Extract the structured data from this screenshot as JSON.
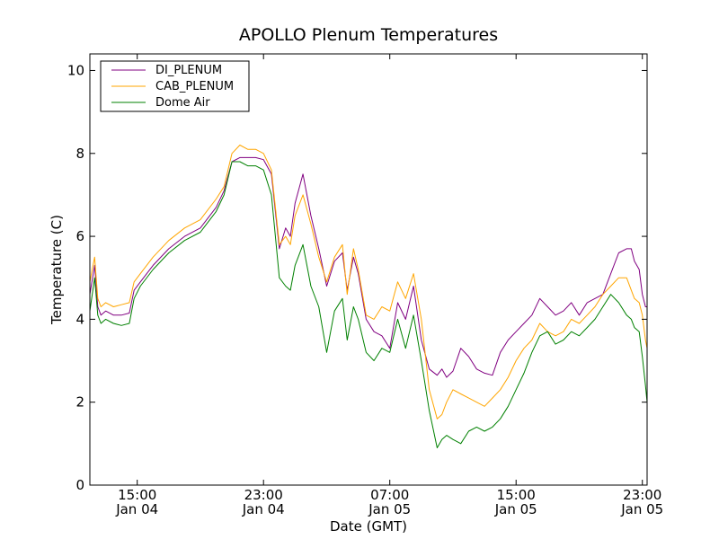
{
  "chart_data": {
    "type": "line",
    "title": "APOLLO Plenum Temperatures",
    "xlabel": "Date (GMT)",
    "ylabel": "Temperature (C)",
    "ylim": [
      0,
      10.4
    ],
    "xlim": [
      12.0,
      47.3
    ],
    "x_unit": "hours since 2014-01-04 00:00 GMT",
    "yticks": [
      0,
      2,
      4,
      6,
      8,
      10
    ],
    "xticks": [
      {
        "x": 15,
        "time": "15:00",
        "date": "Jan 04"
      },
      {
        "x": 23,
        "time": "23:00",
        "date": "Jan 04"
      },
      {
        "x": 31,
        "time": "07:00",
        "date": "Jan 05"
      },
      {
        "x": 39,
        "time": "15:00",
        "date": "Jan 05"
      },
      {
        "x": 47,
        "time": "23:00",
        "date": "Jan 05"
      }
    ],
    "grid": false,
    "legend_position": "top-left",
    "series": [
      {
        "name": "DI_PLENUM",
        "color": "#800080",
        "x": [
          12.0,
          12.3,
          12.5,
          12.7,
          13.0,
          13.5,
          14.0,
          14.5,
          14.8,
          15.2,
          16.0,
          17.0,
          18.0,
          19.0,
          20.0,
          20.5,
          21.0,
          21.5,
          22.0,
          22.5,
          23.0,
          23.5,
          24.0,
          24.4,
          24.7,
          25.0,
          25.5,
          26.0,
          26.5,
          27.0,
          27.5,
          28.0,
          28.3,
          28.7,
          29.0,
          29.5,
          30.0,
          30.5,
          31.0,
          31.5,
          32.0,
          32.5,
          33.0,
          33.5,
          34.0,
          34.3,
          34.6,
          35.0,
          35.5,
          36.0,
          36.5,
          37.0,
          37.5,
          38.0,
          38.5,
          39.0,
          39.5,
          40.0,
          40.5,
          41.0,
          41.5,
          42.0,
          42.5,
          43.0,
          43.5,
          44.0,
          44.5,
          45.0,
          45.5,
          46.0,
          46.3,
          46.5,
          46.8,
          47.0,
          47.2,
          47.3
        ],
        "values": [
          4.6,
          5.3,
          4.3,
          4.1,
          4.2,
          4.1,
          4.1,
          4.15,
          4.7,
          4.9,
          5.3,
          5.7,
          6.0,
          6.2,
          6.7,
          7.1,
          7.8,
          7.9,
          7.9,
          7.9,
          7.85,
          7.5,
          5.7,
          6.2,
          6.0,
          6.8,
          7.5,
          6.5,
          5.7,
          4.8,
          5.4,
          5.6,
          4.7,
          5.5,
          5.1,
          4.0,
          3.7,
          3.6,
          3.3,
          4.4,
          4.0,
          4.8,
          3.5,
          2.8,
          2.65,
          2.8,
          2.6,
          2.75,
          3.3,
          3.1,
          2.8,
          2.7,
          2.65,
          3.2,
          3.5,
          3.7,
          3.9,
          4.1,
          4.5,
          4.3,
          4.1,
          4.2,
          4.4,
          4.1,
          4.4,
          4.5,
          4.6,
          5.1,
          5.6,
          5.7,
          5.7,
          5.4,
          5.2,
          4.6,
          4.3,
          4.3
        ]
      },
      {
        "name": "CAB_PLENUM",
        "color": "#FFA500",
        "x": [
          12.0,
          12.3,
          12.5,
          12.7,
          13.0,
          13.5,
          14.0,
          14.5,
          14.8,
          15.2,
          16.0,
          17.0,
          18.0,
          19.0,
          20.0,
          20.5,
          21.0,
          21.5,
          22.0,
          22.5,
          23.0,
          23.5,
          24.0,
          24.4,
          24.7,
          25.0,
          25.5,
          26.0,
          26.5,
          27.0,
          27.5,
          28.0,
          28.3,
          28.7,
          29.0,
          29.5,
          30.0,
          30.5,
          31.0,
          31.5,
          32.0,
          32.5,
          33.0,
          33.5,
          34.0,
          34.3,
          34.6,
          35.0,
          35.5,
          36.0,
          36.5,
          37.0,
          37.5,
          38.0,
          38.5,
          39.0,
          39.5,
          40.0,
          40.5,
          41.0,
          41.5,
          42.0,
          42.5,
          43.0,
          43.5,
          44.0,
          44.5,
          45.0,
          45.5,
          46.0,
          46.3,
          46.5,
          46.8,
          47.0,
          47.2,
          47.3
        ],
        "values": [
          4.9,
          5.5,
          4.5,
          4.3,
          4.4,
          4.3,
          4.35,
          4.4,
          4.9,
          5.1,
          5.5,
          5.9,
          6.2,
          6.4,
          6.9,
          7.2,
          8.0,
          8.2,
          8.1,
          8.1,
          8.0,
          7.6,
          5.8,
          6.0,
          5.8,
          6.5,
          7.0,
          6.3,
          5.5,
          4.9,
          5.5,
          5.8,
          4.6,
          5.7,
          5.2,
          4.1,
          4.0,
          4.3,
          4.2,
          4.9,
          4.5,
          5.1,
          4.0,
          2.3,
          1.6,
          1.7,
          2.0,
          2.3,
          2.2,
          2.1,
          2.0,
          1.9,
          2.1,
          2.3,
          2.6,
          3.0,
          3.3,
          3.5,
          3.9,
          3.7,
          3.6,
          3.7,
          4.0,
          3.9,
          4.1,
          4.3,
          4.6,
          4.8,
          5.0,
          5.0,
          4.7,
          4.5,
          4.4,
          4.1,
          3.5,
          3.3
        ]
      },
      {
        "name": "Dome Air",
        "color": "#008000",
        "x": [
          12.0,
          12.3,
          12.5,
          12.7,
          13.0,
          13.5,
          14.0,
          14.5,
          14.8,
          15.2,
          16.0,
          17.0,
          18.0,
          19.0,
          20.0,
          20.5,
          21.0,
          21.5,
          22.0,
          22.5,
          23.0,
          23.5,
          24.0,
          24.4,
          24.7,
          25.0,
          25.5,
          26.0,
          26.5,
          27.0,
          27.5,
          28.0,
          28.3,
          28.7,
          29.0,
          29.5,
          30.0,
          30.5,
          31.0,
          31.5,
          32.0,
          32.5,
          33.0,
          33.5,
          34.0,
          34.3,
          34.6,
          35.0,
          35.5,
          36.0,
          36.5,
          37.0,
          37.5,
          38.0,
          38.5,
          39.0,
          39.5,
          40.0,
          40.5,
          41.0,
          41.5,
          42.0,
          42.5,
          43.0,
          43.5,
          44.0,
          44.5,
          45.0,
          45.5,
          46.0,
          46.3,
          46.5,
          46.8,
          47.0,
          47.2,
          47.3
        ],
        "values": [
          4.2,
          5.0,
          4.1,
          3.9,
          4.0,
          3.9,
          3.85,
          3.9,
          4.5,
          4.8,
          5.2,
          5.6,
          5.9,
          6.1,
          6.6,
          7.0,
          7.8,
          7.8,
          7.7,
          7.7,
          7.6,
          7.0,
          5.0,
          4.8,
          4.7,
          5.3,
          5.8,
          4.8,
          4.3,
          3.2,
          4.2,
          4.5,
          3.5,
          4.3,
          4.0,
          3.2,
          3.0,
          3.3,
          3.2,
          4.0,
          3.3,
          4.1,
          3.0,
          1.8,
          0.9,
          1.1,
          1.2,
          1.1,
          1.0,
          1.3,
          1.4,
          1.3,
          1.4,
          1.6,
          1.9,
          2.3,
          2.7,
          3.2,
          3.6,
          3.7,
          3.4,
          3.5,
          3.7,
          3.6,
          3.8,
          4.0,
          4.3,
          4.6,
          4.4,
          4.1,
          4.0,
          3.8,
          3.7,
          3.1,
          2.4,
          2.0
        ]
      }
    ]
  }
}
